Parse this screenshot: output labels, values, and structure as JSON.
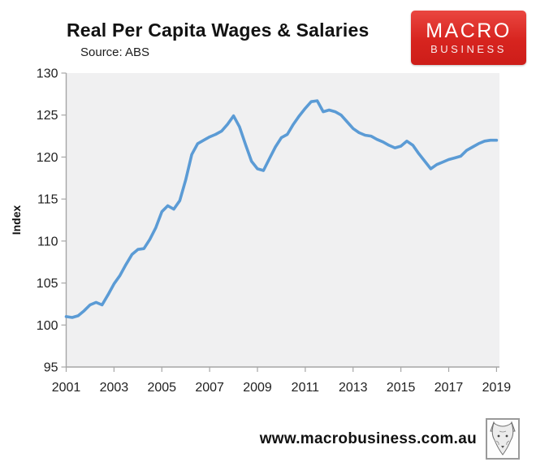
{
  "header": {
    "title": "Real Per Capita Wages & Salaries",
    "source": "Source: ABS",
    "logo": {
      "line1": "MACRO",
      "line2": "BUSINESS",
      "bg_color": "#d7241f",
      "text_color": "#ffffff"
    }
  },
  "chart_data": {
    "type": "line",
    "title": "Real Per Capita Wages & Salaries",
    "subtitle": "Source: ABS",
    "xlabel": "",
    "ylabel": "Index",
    "xlim": [
      2001,
      2019
    ],
    "ylim": [
      95,
      130
    ],
    "x_ticks": [
      2001,
      2003,
      2005,
      2007,
      2009,
      2011,
      2013,
      2015,
      2017,
      2019
    ],
    "y_ticks": [
      95,
      100,
      105,
      110,
      115,
      120,
      125,
      130
    ],
    "grid": false,
    "legend_position": "none",
    "line_color": "#5b9bd5",
    "line_width": 3.6,
    "plot_bg": "#f0f0f1",
    "axis_color": "#a6a6a6",
    "tick_label_color": "#1f1f1f",
    "x_start": 2001.0,
    "x_step": 0.25,
    "x_unit": "year (quarterly observations)",
    "values": [
      101.0,
      100.9,
      101.1,
      101.7,
      102.4,
      102.7,
      102.4,
      103.6,
      104.9,
      105.9,
      107.2,
      108.4,
      109.0,
      109.1,
      110.2,
      111.6,
      113.5,
      114.2,
      113.8,
      114.8,
      117.3,
      120.3,
      121.6,
      122.0,
      122.4,
      122.7,
      123.1,
      123.9,
      124.9,
      123.6,
      121.5,
      119.5,
      118.6,
      118.4,
      119.8,
      121.2,
      122.3,
      122.7,
      123.9,
      124.9,
      125.8,
      126.6,
      126.7,
      125.4,
      125.6,
      125.4,
      125.0,
      124.2,
      123.4,
      122.9,
      122.6,
      122.5,
      122.1,
      121.8,
      121.4,
      121.1,
      121.3,
      121.9,
      121.4,
      120.4,
      119.5,
      118.6,
      119.1,
      119.4,
      119.7,
      119.9,
      120.1,
      120.8,
      121.2,
      121.6,
      121.9,
      122.0,
      122.0
    ]
  },
  "footer": {
    "url": "www.macrobusiness.com.au",
    "logo": "wolf-sketch"
  }
}
